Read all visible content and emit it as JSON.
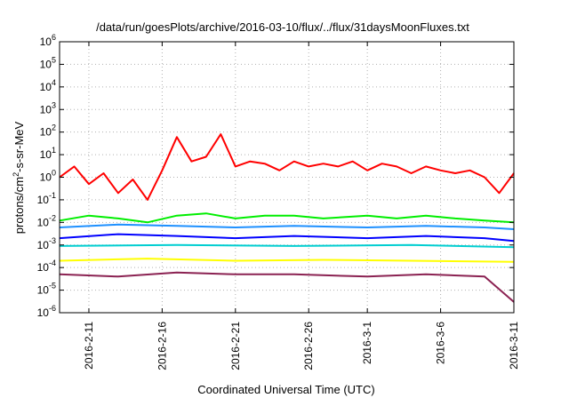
{
  "chart_data": {
    "type": "line",
    "title": "/data/run/goesPlots/archive/2016-03-10/flux/../flux/31daysMoonFluxes.txt",
    "xlabel": "Coordinated Universal Time (UTC)",
    "ylabel_parts": [
      "protons/cm",
      "2",
      "-s-sr-MeV"
    ],
    "yscale": "log",
    "ylim": [
      1e-06,
      1000000.0
    ],
    "y_ticks": [
      {
        "base": "10",
        "exp": "-6",
        "value": 1e-06
      },
      {
        "base": "10",
        "exp": "-5",
        "value": 1e-05
      },
      {
        "base": "10",
        "exp": "-4",
        "value": 0.0001
      },
      {
        "base": "10",
        "exp": "-3",
        "value": 0.001
      },
      {
        "base": "10",
        "exp": "-2",
        "value": 0.01
      },
      {
        "base": "10",
        "exp": "-1",
        "value": 0.1
      },
      {
        "base": "10",
        "exp": "0",
        "value": 1
      },
      {
        "base": "10",
        "exp": "1",
        "value": 10
      },
      {
        "base": "10",
        "exp": "2",
        "value": 100
      },
      {
        "base": "10",
        "exp": "3",
        "value": 1000
      },
      {
        "base": "10",
        "exp": "4",
        "value": 10000
      },
      {
        "base": "10",
        "exp": "5",
        "value": 100000
      },
      {
        "base": "10",
        "exp": "6",
        "value": 1000000
      }
    ],
    "xlim": [
      "2016-02-09",
      "2016-03-11"
    ],
    "x_ticks": [
      "2016-2-11",
      "2016-2-16",
      "2016-2-21",
      "2016-2-26",
      "2016-3-1",
      "2016-3-6",
      "2016-3-11"
    ],
    "grid": true,
    "series": [
      {
        "color": "#ff0000",
        "x": [
          "2016-02-09",
          "2016-02-10",
          "2016-02-11",
          "2016-02-12",
          "2016-02-13",
          "2016-02-14",
          "2016-02-15",
          "2016-02-16",
          "2016-02-17",
          "2016-02-18",
          "2016-02-19",
          "2016-02-20",
          "2016-02-21",
          "2016-02-22",
          "2016-02-23",
          "2016-02-24",
          "2016-02-25",
          "2016-02-26",
          "2016-02-27",
          "2016-02-28",
          "2016-02-29",
          "2016-03-01",
          "2016-03-02",
          "2016-03-03",
          "2016-03-04",
          "2016-03-05",
          "2016-03-06",
          "2016-03-07",
          "2016-03-08",
          "2016-03-09",
          "2016-03-10",
          "2016-03-11"
        ],
        "values": [
          1.0,
          3.0,
          0.5,
          1.5,
          0.2,
          0.8,
          0.1,
          2.0,
          60,
          5,
          8,
          80,
          3,
          5,
          4,
          2,
          5,
          3,
          4,
          3,
          5,
          2,
          4,
          3,
          1.5,
          3,
          2,
          1.5,
          2,
          1,
          0.2,
          1.5
        ]
      },
      {
        "color": "#00ee00",
        "x": [
          "2016-02-09",
          "2016-02-11",
          "2016-02-13",
          "2016-02-15",
          "2016-02-17",
          "2016-02-19",
          "2016-02-21",
          "2016-02-23",
          "2016-02-25",
          "2016-02-27",
          "2016-03-01",
          "2016-03-03",
          "2016-03-05",
          "2016-03-07",
          "2016-03-09",
          "2016-03-11"
        ],
        "values": [
          0.012,
          0.02,
          0.015,
          0.01,
          0.02,
          0.025,
          0.015,
          0.02,
          0.02,
          0.015,
          0.02,
          0.015,
          0.02,
          0.015,
          0.012,
          0.01
        ]
      },
      {
        "color": "#1e90ff",
        "x": [
          "2016-02-09",
          "2016-02-13",
          "2016-02-17",
          "2016-02-21",
          "2016-02-25",
          "2016-03-01",
          "2016-03-05",
          "2016-03-09",
          "2016-03-11"
        ],
        "values": [
          0.006,
          0.008,
          0.007,
          0.006,
          0.007,
          0.006,
          0.007,
          0.006,
          0.005
        ]
      },
      {
        "color": "#0000ff",
        "x": [
          "2016-02-09",
          "2016-02-13",
          "2016-02-17",
          "2016-02-21",
          "2016-02-25",
          "2016-03-01",
          "2016-03-05",
          "2016-03-09",
          "2016-03-11"
        ],
        "values": [
          0.002,
          0.003,
          0.0025,
          0.002,
          0.0025,
          0.002,
          0.0025,
          0.002,
          0.0015
        ]
      },
      {
        "color": "#00ced1",
        "x": [
          "2016-02-09",
          "2016-02-17",
          "2016-02-25",
          "2016-03-04",
          "2016-03-11"
        ],
        "values": [
          0.0009,
          0.001,
          0.0009,
          0.001,
          0.0008
        ]
      },
      {
        "color": "#ffff00",
        "x": [
          "2016-02-09",
          "2016-02-15",
          "2016-02-21",
          "2016-02-27",
          "2016-03-04",
          "2016-03-11"
        ],
        "values": [
          0.0002,
          0.00025,
          0.0002,
          0.00022,
          0.0002,
          0.00018
        ]
      },
      {
        "color": "#8b2252",
        "x": [
          "2016-02-09",
          "2016-02-13",
          "2016-02-17",
          "2016-02-21",
          "2016-02-25",
          "2016-03-01",
          "2016-03-05",
          "2016-03-09",
          "2016-03-11"
        ],
        "values": [
          5e-05,
          4e-05,
          6e-05,
          5e-05,
          5e-05,
          4e-05,
          5e-05,
          4e-05,
          3e-06
        ]
      }
    ]
  }
}
